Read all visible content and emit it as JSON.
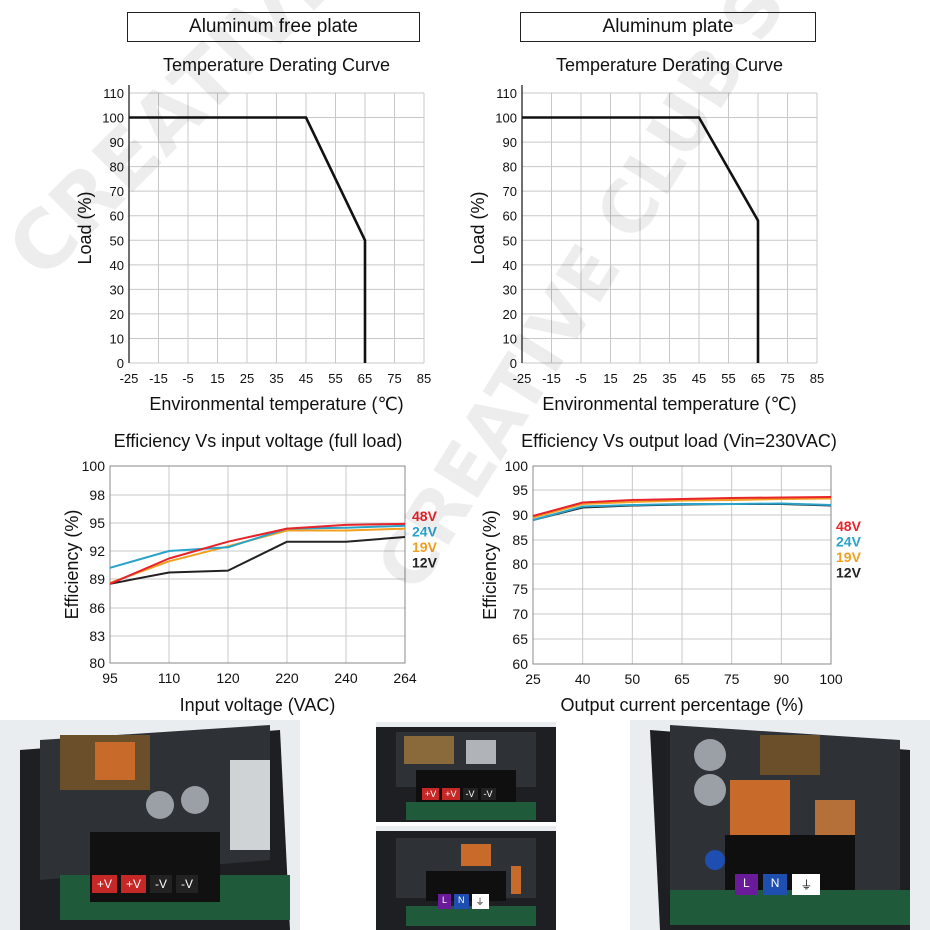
{
  "panels": {
    "left_header": "Aluminum free plate",
    "right_header": "Aluminum plate"
  },
  "watermark": "CREATIVE CLUB STOP",
  "colors": {
    "48V": "#e8232a",
    "24V": "#2aa3c9",
    "19V": "#f0a020",
    "12V": "#222222",
    "curve": "#111111",
    "grid": "#c8c8c8"
  },
  "chart_data": [
    {
      "id": "derating_left",
      "type": "line",
      "title": "Temperature Derating Curve",
      "xlabel": "Environmental temperature (℃)",
      "ylabel": "Load (%)",
      "x_ticks": [
        "-25",
        "-15",
        "-5",
        "15",
        "25",
        "35",
        "45",
        "55",
        "65",
        "75",
        "85"
      ],
      "y_ticks": [
        "0",
        "10",
        "20",
        "30",
        "40",
        "50",
        "60",
        "70",
        "80",
        "90",
        "100",
        "110"
      ],
      "ylim": [
        0,
        110
      ],
      "grid": true,
      "series": [
        {
          "points": [
            [
              "-25",
              100
            ],
            [
              "45",
              100
            ],
            [
              "65",
              50
            ],
            [
              "65",
              0
            ]
          ]
        }
      ]
    },
    {
      "id": "derating_right",
      "type": "line",
      "title": "Temperature Derating Curve",
      "xlabel": "Environmental temperature (℃)",
      "ylabel": "Load (%)",
      "x_ticks": [
        "-25",
        "-15",
        "-5",
        "15",
        "25",
        "35",
        "45",
        "55",
        "65",
        "75",
        "85"
      ],
      "y_ticks": [
        "0",
        "10",
        "20",
        "30",
        "40",
        "50",
        "60",
        "70",
        "80",
        "90",
        "100",
        "110"
      ],
      "ylim": [
        0,
        110
      ],
      "grid": true,
      "series": [
        {
          "points": [
            [
              "-25",
              100
            ],
            [
              "45",
              100
            ],
            [
              "65",
              58
            ],
            [
              "65",
              0
            ]
          ]
        }
      ]
    },
    {
      "id": "eff_vs_input",
      "type": "line",
      "title": "Efficiency Vs input voltage (full load)",
      "xlabel": "Input voltage (VAC)",
      "ylabel": "Efficiency (%)",
      "x_ticks": [
        "95",
        "110",
        "120",
        "220",
        "240",
        "264"
      ],
      "y_ticks": [
        "80",
        "83",
        "86",
        "89",
        "92",
        "95",
        "98",
        "100"
      ],
      "legend_position": "right",
      "grid": true,
      "series": [
        {
          "name": "48V",
          "values": [
            88.5,
            91.2,
            93.0,
            94.4,
            94.8,
            94.9
          ]
        },
        {
          "name": "24V",
          "values": [
            90.2,
            92.0,
            92.4,
            94.4,
            94.5,
            94.7
          ]
        },
        {
          "name": "19V",
          "values": [
            88.6,
            90.9,
            92.5,
            94.2,
            94.2,
            94.4
          ]
        },
        {
          "name": "12V",
          "values": [
            88.5,
            89.7,
            89.9,
            93.0,
            93.0,
            93.5
          ]
        }
      ]
    },
    {
      "id": "eff_vs_load",
      "type": "line",
      "title": "Efficiency Vs output load (Vin=230VAC)",
      "xlabel": "Output current percentage (%)",
      "ylabel": "Efficiency (%)",
      "x_ticks": [
        "25",
        "40",
        "50",
        "65",
        "75",
        "90",
        "100"
      ],
      "y_ticks": [
        "60",
        "65",
        "70",
        "75",
        "80",
        "85",
        "90",
        "95",
        "100"
      ],
      "legend_position": "right",
      "grid": true,
      "series": [
        {
          "name": "48V",
          "values": [
            89.8,
            92.5,
            93.0,
            93.2,
            93.4,
            93.5,
            93.6
          ]
        },
        {
          "name": "24V",
          "values": [
            89.0,
            91.7,
            92.0,
            92.2,
            92.2,
            92.3,
            92.0
          ]
        },
        {
          "name": "19V",
          "values": [
            89.5,
            92.2,
            92.6,
            92.9,
            93.0,
            93.2,
            93.3
          ]
        },
        {
          "name": "12V",
          "values": [
            89.0,
            91.5,
            91.9,
            92.1,
            92.2,
            92.2,
            91.9
          ]
        }
      ]
    }
  ],
  "photos": [
    {
      "terminals": [
        "+V",
        "+V",
        "-V",
        "-V"
      ]
    },
    {
      "terminals": [
        "+V",
        "+V",
        "-V",
        "-V"
      ]
    },
    {
      "terminals": [
        "L",
        "N",
        "⏚"
      ]
    },
    {
      "terminals": [
        "L",
        "N",
        "⏚"
      ]
    }
  ]
}
